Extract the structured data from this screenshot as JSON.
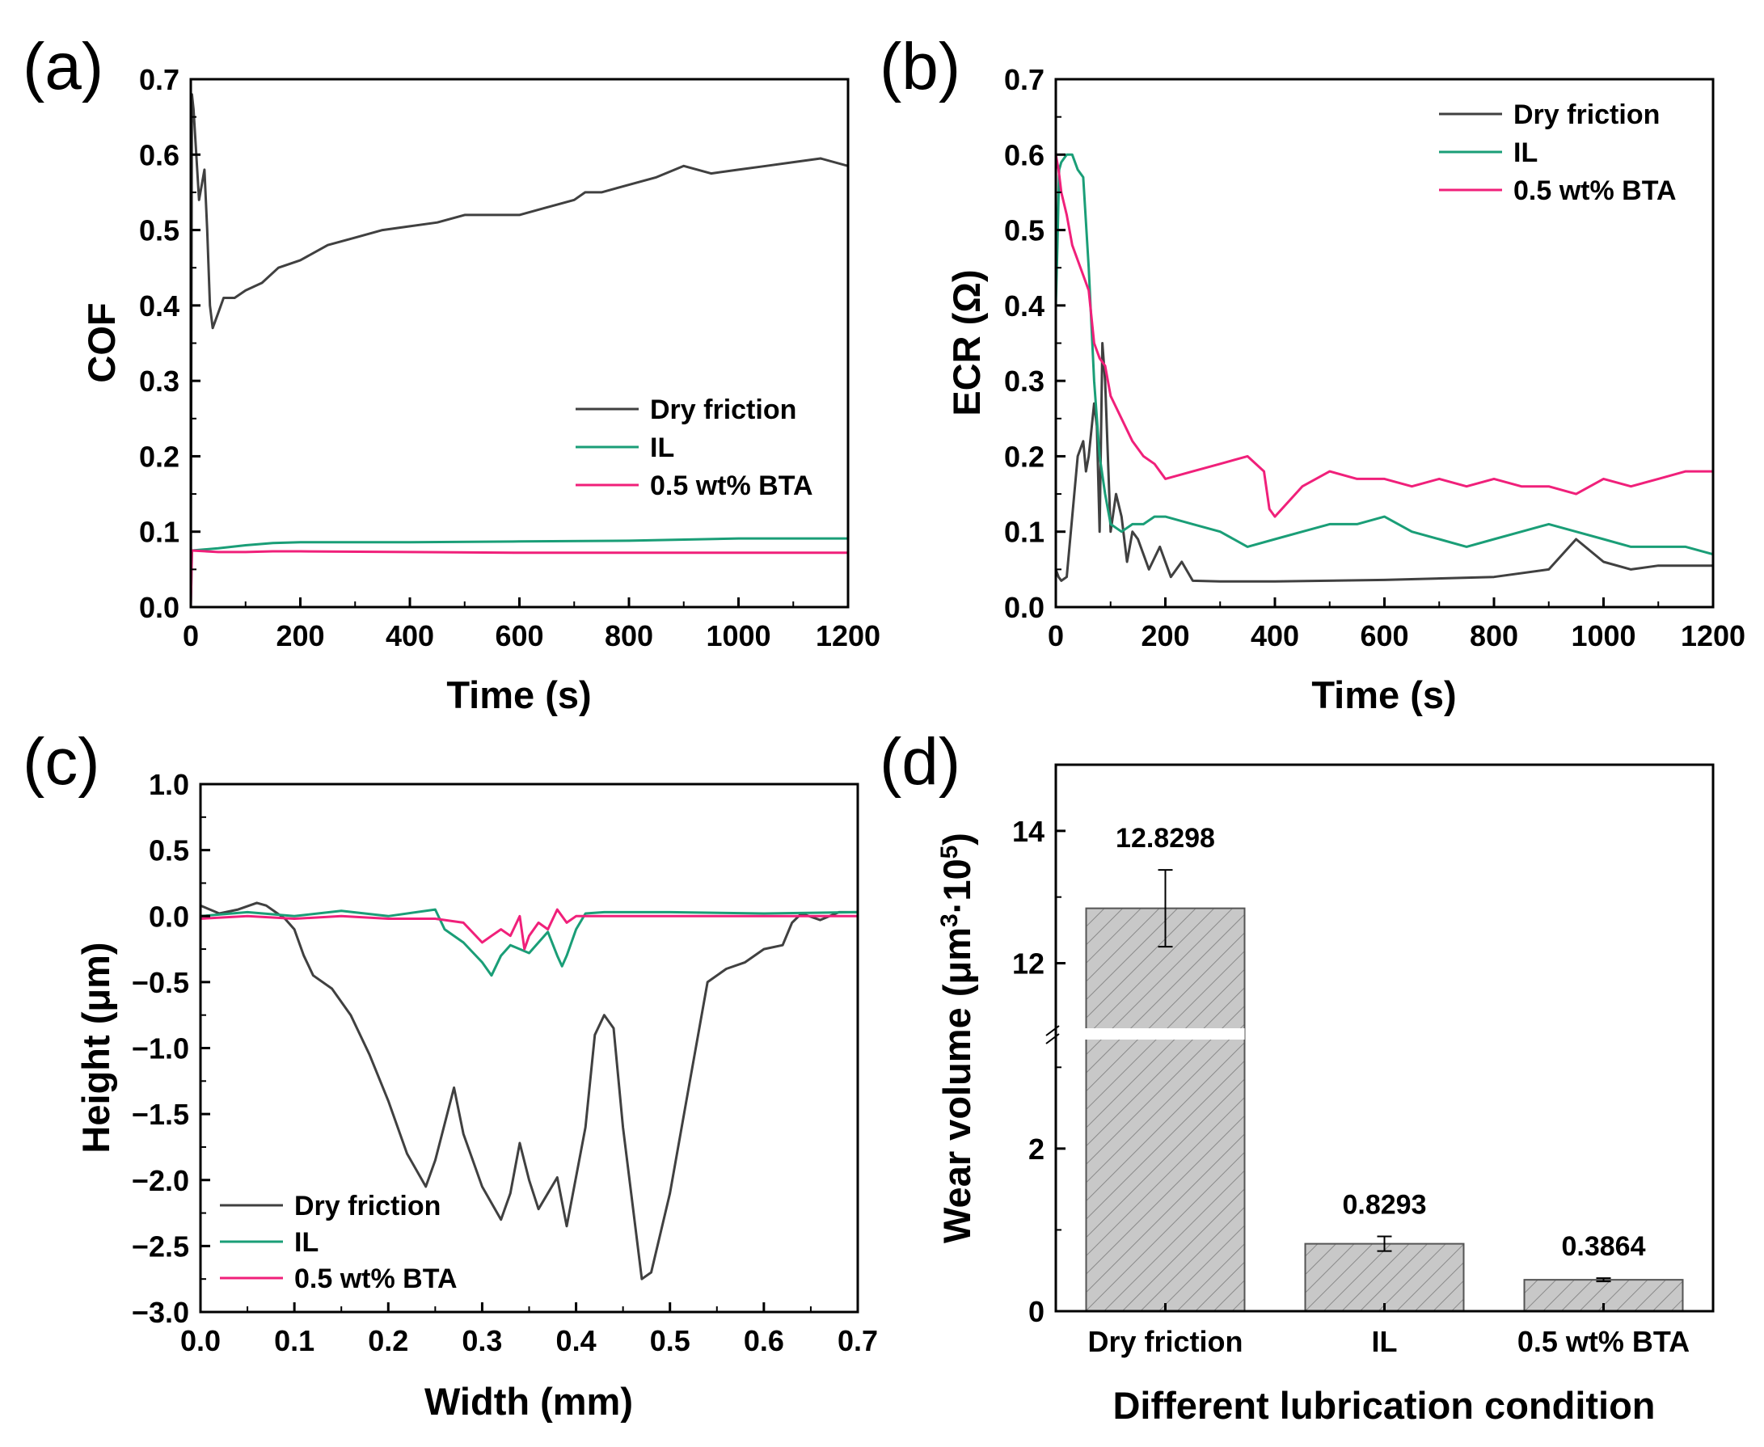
{
  "colors": {
    "dry": "#404040",
    "il": "#1a9e77",
    "bta": "#f0207a",
    "bar_fill": "#c8c8c8",
    "bar_hatch": "#8a8a8a"
  },
  "chart_data": [
    {
      "id": "a",
      "panel_label": "(a)",
      "type": "line",
      "title": "",
      "xlabel": "Time (s)",
      "ylabel": "COF",
      "xlim": [
        0,
        1200
      ],
      "ylim": [
        0,
        0.7
      ],
      "xticks": [
        "0",
        "200",
        "400",
        "600",
        "800",
        "1000",
        "1200"
      ],
      "yticks": [
        "0.0",
        "0.1",
        "0.2",
        "0.3",
        "0.4",
        "0.5",
        "0.6",
        "0.7"
      ],
      "legend_position": "center-right",
      "series": [
        {
          "name": "Dry friction",
          "color_key": "dry",
          "x": [
            0,
            2,
            5,
            10,
            15,
            20,
            25,
            30,
            35,
            40,
            50,
            60,
            80,
            100,
            130,
            160,
            200,
            250,
            300,
            350,
            400,
            450,
            500,
            550,
            600,
            650,
            700,
            720,
            750,
            800,
            850,
            900,
            950,
            1000,
            1050,
            1100,
            1150,
            1200
          ],
          "y": [
            0.0,
            0.68,
            0.66,
            0.6,
            0.54,
            0.56,
            0.58,
            0.5,
            0.4,
            0.37,
            0.39,
            0.41,
            0.41,
            0.42,
            0.43,
            0.45,
            0.46,
            0.48,
            0.49,
            0.5,
            0.505,
            0.51,
            0.52,
            0.52,
            0.52,
            0.53,
            0.54,
            0.55,
            0.55,
            0.56,
            0.57,
            0.585,
            0.575,
            0.58,
            0.585,
            0.59,
            0.595,
            0.585
          ]
        },
        {
          "name": "IL",
          "color_key": "il",
          "x": [
            0,
            2,
            50,
            100,
            150,
            200,
            400,
            600,
            800,
            1000,
            1200
          ],
          "y": [
            0.0,
            0.075,
            0.078,
            0.082,
            0.085,
            0.086,
            0.086,
            0.087,
            0.088,
            0.091,
            0.091
          ]
        },
        {
          "name": "0.5 wt% BTA",
          "color_key": "bta",
          "x": [
            0,
            2,
            50,
            100,
            150,
            200,
            400,
            600,
            800,
            1000,
            1200
          ],
          "y": [
            0.0,
            0.075,
            0.073,
            0.073,
            0.074,
            0.074,
            0.073,
            0.072,
            0.072,
            0.072,
            0.072
          ]
        }
      ]
    },
    {
      "id": "b",
      "panel_label": "(b)",
      "type": "line",
      "title": "",
      "xlabel": "Time (s)",
      "ylabel": "ECR (Ω)",
      "xlim": [
        0,
        1200
      ],
      "ylim": [
        0,
        0.7
      ],
      "xticks": [
        "0",
        "200",
        "400",
        "600",
        "800",
        "1000",
        "1200"
      ],
      "yticks": [
        "0.0",
        "0.1",
        "0.2",
        "0.3",
        "0.4",
        "0.5",
        "0.6",
        "0.7"
      ],
      "legend_position": "top-right",
      "series": [
        {
          "name": "Dry friction",
          "color_key": "dry",
          "x": [
            0,
            5,
            10,
            20,
            30,
            40,
            50,
            55,
            60,
            70,
            75,
            80,
            85,
            90,
            95,
            100,
            110,
            120,
            130,
            140,
            150,
            170,
            190,
            210,
            230,
            250,
            300,
            400,
            600,
            800,
            900,
            950,
            1000,
            1050,
            1100,
            1200
          ],
          "y": [
            0.05,
            0.04,
            0.035,
            0.04,
            0.12,
            0.2,
            0.22,
            0.18,
            0.2,
            0.27,
            0.24,
            0.1,
            0.35,
            0.3,
            0.2,
            0.1,
            0.15,
            0.12,
            0.06,
            0.1,
            0.09,
            0.05,
            0.08,
            0.04,
            0.06,
            0.035,
            0.034,
            0.034,
            0.036,
            0.04,
            0.05,
            0.09,
            0.06,
            0.05,
            0.055,
            0.055
          ]
        },
        {
          "name": "IL",
          "color_key": "il",
          "x": [
            0,
            3,
            6,
            10,
            20,
            30,
            40,
            50,
            60,
            70,
            80,
            90,
            100,
            120,
            140,
            160,
            180,
            200,
            250,
            300,
            350,
            400,
            450,
            500,
            550,
            600,
            650,
            700,
            750,
            800,
            850,
            900,
            950,
            1000,
            1050,
            1100,
            1150,
            1200
          ],
          "y": [
            0.4,
            0.48,
            0.58,
            0.59,
            0.6,
            0.6,
            0.58,
            0.57,
            0.45,
            0.3,
            0.2,
            0.15,
            0.11,
            0.1,
            0.11,
            0.11,
            0.12,
            0.12,
            0.11,
            0.1,
            0.08,
            0.09,
            0.1,
            0.11,
            0.11,
            0.12,
            0.1,
            0.09,
            0.08,
            0.09,
            0.1,
            0.11,
            0.1,
            0.09,
            0.08,
            0.08,
            0.08,
            0.07
          ]
        },
        {
          "name": "0.5 wt% BTA",
          "color_key": "bta",
          "x": [
            0,
            5,
            10,
            20,
            30,
            40,
            50,
            60,
            70,
            80,
            90,
            100,
            120,
            140,
            160,
            180,
            200,
            250,
            300,
            350,
            380,
            390,
            400,
            450,
            500,
            550,
            600,
            650,
            700,
            750,
            800,
            850,
            900,
            950,
            1000,
            1050,
            1100,
            1150,
            1200
          ],
          "y": [
            0.6,
            0.58,
            0.55,
            0.52,
            0.48,
            0.46,
            0.44,
            0.42,
            0.35,
            0.33,
            0.32,
            0.28,
            0.25,
            0.22,
            0.2,
            0.19,
            0.17,
            0.18,
            0.19,
            0.2,
            0.18,
            0.13,
            0.12,
            0.16,
            0.18,
            0.17,
            0.17,
            0.16,
            0.17,
            0.16,
            0.17,
            0.16,
            0.16,
            0.15,
            0.17,
            0.16,
            0.17,
            0.18,
            0.18
          ]
        }
      ]
    },
    {
      "id": "c",
      "panel_label": "(c)",
      "type": "line",
      "title": "",
      "xlabel": "Width (mm)",
      "ylabel": "Height (μm)",
      "xlim": [
        0,
        0.7
      ],
      "ylim": [
        -3.0,
        1.0
      ],
      "xticks": [
        "0.0",
        "0.1",
        "0.2",
        "0.3",
        "0.4",
        "0.5",
        "0.6",
        "0.7"
      ],
      "yticks": [
        "−3.0",
        "−2.5",
        "−2.0",
        "−1.5",
        "−1.0",
        "−0.5",
        "0.0",
        "0.5",
        "1.0"
      ],
      "legend_position": "bottom-left",
      "series": [
        {
          "name": "Dry friction",
          "color_key": "dry",
          "x": [
            0.0,
            0.02,
            0.04,
            0.06,
            0.07,
            0.08,
            0.09,
            0.1,
            0.11,
            0.12,
            0.14,
            0.16,
            0.18,
            0.2,
            0.22,
            0.24,
            0.25,
            0.27,
            0.28,
            0.3,
            0.32,
            0.33,
            0.34,
            0.35,
            0.36,
            0.38,
            0.39,
            0.41,
            0.42,
            0.43,
            0.44,
            0.45,
            0.47,
            0.48,
            0.5,
            0.52,
            0.54,
            0.56,
            0.58,
            0.6,
            0.62,
            0.63,
            0.64,
            0.66,
            0.68,
            0.7
          ],
          "y": [
            0.08,
            0.02,
            0.05,
            0.1,
            0.08,
            0.03,
            -0.02,
            -0.1,
            -0.3,
            -0.45,
            -0.55,
            -0.75,
            -1.05,
            -1.4,
            -1.8,
            -2.05,
            -1.85,
            -1.3,
            -1.65,
            -2.05,
            -2.3,
            -2.1,
            -1.72,
            -2.0,
            -2.22,
            -1.98,
            -2.35,
            -1.6,
            -0.9,
            -0.75,
            -0.85,
            -1.6,
            -2.75,
            -2.7,
            -2.1,
            -1.3,
            -0.5,
            -0.4,
            -0.35,
            -0.25,
            -0.22,
            -0.05,
            0.02,
            -0.03,
            0.03,
            0.03
          ]
        },
        {
          "name": "IL",
          "color_key": "il",
          "x": [
            0.0,
            0.05,
            0.1,
            0.15,
            0.2,
            0.25,
            0.26,
            0.28,
            0.3,
            0.31,
            0.32,
            0.33,
            0.35,
            0.36,
            0.37,
            0.38,
            0.385,
            0.39,
            0.4,
            0.41,
            0.43,
            0.5,
            0.6,
            0.7
          ],
          "y": [
            0.0,
            0.03,
            0.0,
            0.04,
            0.0,
            0.05,
            -0.1,
            -0.2,
            -0.35,
            -0.45,
            -0.3,
            -0.22,
            -0.28,
            -0.2,
            -0.12,
            -0.3,
            -0.38,
            -0.3,
            -0.1,
            0.02,
            0.03,
            0.03,
            0.02,
            0.03
          ]
        },
        {
          "name": "0.5 wt% BTA",
          "color_key": "bta",
          "x": [
            0.0,
            0.05,
            0.1,
            0.15,
            0.2,
            0.25,
            0.28,
            0.3,
            0.31,
            0.32,
            0.33,
            0.34,
            0.345,
            0.35,
            0.36,
            0.37,
            0.38,
            0.39,
            0.4,
            0.5,
            0.6,
            0.7
          ],
          "y": [
            -0.02,
            0.0,
            -0.02,
            0.0,
            -0.02,
            -0.02,
            -0.05,
            -0.2,
            -0.15,
            -0.1,
            -0.15,
            0.0,
            -0.25,
            -0.15,
            -0.05,
            -0.1,
            0.05,
            -0.05,
            0.0,
            0.0,
            0.0,
            0.0
          ]
        }
      ]
    },
    {
      "id": "d",
      "panel_label": "(d)",
      "type": "bar",
      "title": "",
      "xlabel": "Different lubrication condition",
      "ylabel_main": "Wear volume (μm",
      "ylabel_sup1": "3",
      "ylabel_mid": "·10",
      "ylabel_sup2": "5",
      "ylabel_end": ")",
      "y_axis_break": true,
      "lower_ylim": [
        0,
        3.5
      ],
      "upper_ylim": [
        11.2,
        15
      ],
      "yticks_lower": [
        "0",
        "2"
      ],
      "yticks_upper": [
        "12",
        "14"
      ],
      "categories": [
        "Dry friction",
        "IL",
        "0.5 wt% BTA"
      ],
      "values": [
        12.8298,
        0.8293,
        0.3864
      ],
      "error": [
        0.58,
        0.09,
        0.02
      ],
      "value_labels": [
        "12.8298",
        "0.8293",
        "0.3864"
      ]
    }
  ]
}
